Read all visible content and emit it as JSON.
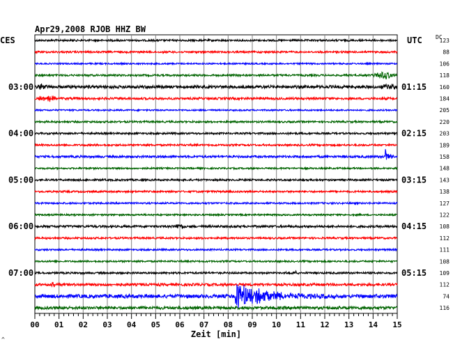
{
  "header": {
    "title": "Apr29,2008   RJOB HHZ BW"
  },
  "left_axis_label": "CES",
  "right_axis_label": "UTC",
  "dc_label": "DC",
  "footer_mark": "^",
  "colors": {
    "black": "#000000",
    "red": "#ff0000",
    "blue": "#0000ff",
    "green": "#006400",
    "grid": "#808080"
  },
  "chart_data": {
    "type": "line",
    "title": "Apr29,2008   RJOB HHZ BW",
    "xlabel": "Zeit [min]",
    "x_ticks": [
      "00",
      "01",
      "02",
      "03",
      "04",
      "05",
      "06",
      "07",
      "08",
      "09",
      "10",
      "11",
      "12",
      "13",
      "14",
      "15"
    ],
    "xlim": [
      0,
      15
    ],
    "left_time_labels": [
      {
        "trace": 4,
        "text": "03:00"
      },
      {
        "trace": 8,
        "text": "04:00"
      },
      {
        "trace": 12,
        "text": "05:00"
      },
      {
        "trace": 16,
        "text": "06:00"
      },
      {
        "trace": 20,
        "text": "07:00"
      }
    ],
    "right_time_labels": [
      {
        "trace": 0,
        "text": "UTC"
      },
      {
        "trace": 4,
        "text": "01:15"
      },
      {
        "trace": 8,
        "text": "02:15"
      },
      {
        "trace": 12,
        "text": "03:15"
      },
      {
        "trace": 16,
        "text": "04:15"
      },
      {
        "trace": 20,
        "text": "05:15"
      }
    ],
    "traces": [
      {
        "color": "black",
        "dc": "123",
        "noise": 1.0
      },
      {
        "color": "red",
        "dc": "88",
        "noise": 1.0
      },
      {
        "color": "blue",
        "dc": "106",
        "noise": 0.8
      },
      {
        "color": "green",
        "dc": "118",
        "noise": 1.0,
        "events": [
          {
            "t": 13.9,
            "dur": 1.1,
            "amp": 5,
            "shape": "swell"
          }
        ]
      },
      {
        "color": "black",
        "dc": "160",
        "noise": 1.6,
        "events": [
          {
            "t": 0.05,
            "dur": 0.5,
            "amp": 3,
            "shape": "swell"
          },
          {
            "t": 14.3,
            "dur": 0.7,
            "amp": 3,
            "shape": "swell"
          }
        ]
      },
      {
        "color": "red",
        "dc": "184",
        "noise": 1.2,
        "events": [
          {
            "t": 0.0,
            "dur": 1.1,
            "amp": 4,
            "shape": "swell"
          }
        ]
      },
      {
        "color": "blue",
        "dc": "205",
        "noise": 0.8
      },
      {
        "color": "green",
        "dc": "220",
        "noise": 1.0
      },
      {
        "color": "black",
        "dc": "203",
        "noise": 1.0
      },
      {
        "color": "red",
        "dc": "189",
        "noise": 1.0
      },
      {
        "color": "blue",
        "dc": "158",
        "noise": 1.2,
        "events": [
          {
            "t": 14.5,
            "dur": 0.6,
            "amp": 16,
            "shape": "quake"
          }
        ]
      },
      {
        "color": "green",
        "dc": "148",
        "noise": 0.9
      },
      {
        "color": "black",
        "dc": "143",
        "noise": 1.0
      },
      {
        "color": "red",
        "dc": "138",
        "noise": 1.0
      },
      {
        "color": "blue",
        "dc": "127",
        "noise": 0.9
      },
      {
        "color": "green",
        "dc": "122",
        "noise": 0.9
      },
      {
        "color": "black",
        "dc": "108",
        "noise": 1.2,
        "events": [
          {
            "t": 5.6,
            "dur": 0.7,
            "amp": 3,
            "shape": "swell"
          }
        ]
      },
      {
        "color": "red",
        "dc": "112",
        "noise": 1.0
      },
      {
        "color": "blue",
        "dc": "111",
        "noise": 0.9
      },
      {
        "color": "green",
        "dc": "108",
        "noise": 0.9
      },
      {
        "color": "black",
        "dc": "109",
        "noise": 1.0,
        "events": [
          {
            "t": 10.3,
            "dur": 0.8,
            "amp": 2,
            "shape": "swell"
          }
        ]
      },
      {
        "color": "red",
        "dc": "112",
        "noise": 1.4,
        "events": [
          {
            "t": 0.6,
            "dur": 0.4,
            "amp": 3,
            "shape": "swell"
          }
        ]
      },
      {
        "color": "blue",
        "dc": "74",
        "noise": 2.0,
        "events": [
          {
            "t": 8.2,
            "dur": 6.8,
            "amp": 20,
            "shape": "quake"
          }
        ]
      },
      {
        "color": "green",
        "dc": "116",
        "noise": 1.6
      }
    ]
  }
}
